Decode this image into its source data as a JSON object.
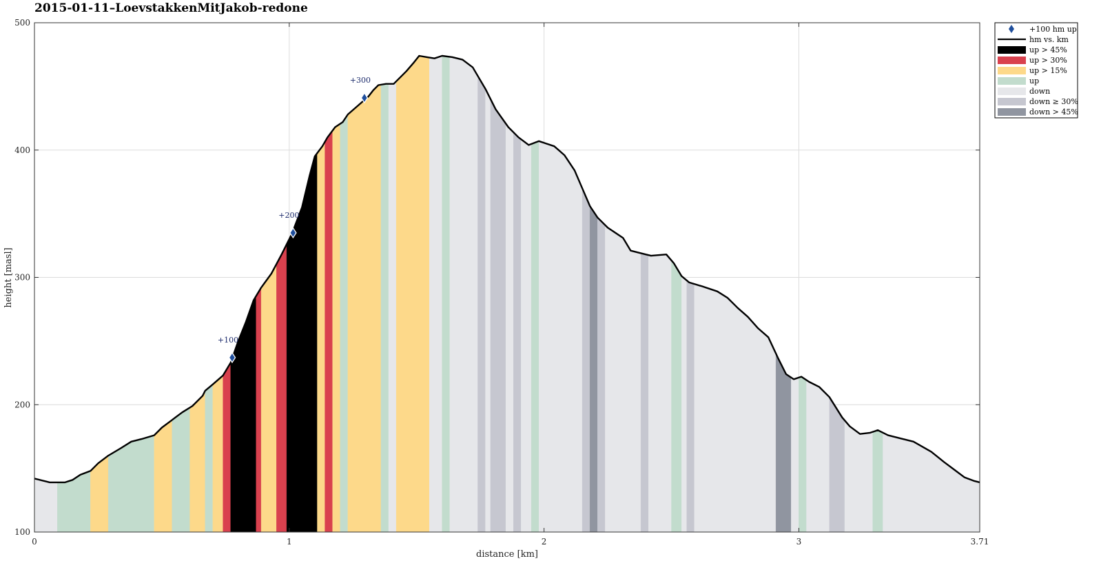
{
  "chart_data": {
    "type": "area",
    "title": "2015-01-11–LoevstakkenMitJakob-redone",
    "xlabel": "distance [km]",
    "ylabel": "height [masl]",
    "xlim": [
      0,
      3.71
    ],
    "ylim": [
      100,
      500
    ],
    "xticks": [
      "0",
      "1",
      "2",
      "3",
      "3.71"
    ],
    "yticks": [
      "100",
      "200",
      "300",
      "400",
      "500"
    ],
    "grid": true,
    "legend_position": "outside-top-right",
    "legend": [
      {
        "label": "+100 hm up",
        "kind": "marker",
        "color": "#1f4e9c"
      },
      {
        "label": "hm vs. km",
        "kind": "line",
        "color": "#000000"
      },
      {
        "label": "up > 45%",
        "kind": "patch",
        "color": "#000000"
      },
      {
        "label": "up > 30%",
        "kind": "patch",
        "color": "#d9414e"
      },
      {
        "label": "up > 15%",
        "kind": "patch",
        "color": "#fdd98a"
      },
      {
        "label": "up",
        "kind": "patch",
        "color": "#c2dccd"
      },
      {
        "label": "down",
        "kind": "patch",
        "color": "#e6e7ea"
      },
      {
        "label": "down ≥ 30%",
        "kind": "patch",
        "color": "#c6c7d0"
      },
      {
        "label": "down > 45%",
        "kind": "patch",
        "color": "#9095a0"
      }
    ],
    "profile": [
      [
        0,
        142
      ],
      [
        0.06,
        139
      ],
      [
        0.12,
        139
      ],
      [
        0.15,
        141
      ],
      [
        0.18,
        145
      ],
      [
        0.22,
        148
      ],
      [
        0.25,
        154
      ],
      [
        0.29,
        160
      ],
      [
        0.34,
        166
      ],
      [
        0.38,
        171
      ],
      [
        0.42,
        173
      ],
      [
        0.47,
        176
      ],
      [
        0.5,
        182
      ],
      [
        0.54,
        188
      ],
      [
        0.58,
        194
      ],
      [
        0.62,
        199
      ],
      [
        0.66,
        207
      ],
      [
        0.67,
        211
      ],
      [
        0.7,
        216
      ],
      [
        0.74,
        223
      ],
      [
        0.77,
        233
      ],
      [
        0.8,
        250
      ],
      [
        0.83,
        265
      ],
      [
        0.86,
        282
      ],
      [
        0.89,
        292
      ],
      [
        0.93,
        303
      ],
      [
        0.97,
        318
      ],
      [
        1.01,
        334
      ],
      [
        1.05,
        355
      ],
      [
        1.08,
        380
      ],
      [
        1.1,
        395
      ],
      [
        1.13,
        403
      ],
      [
        1.15,
        410
      ],
      [
        1.18,
        418
      ],
      [
        1.21,
        422
      ],
      [
        1.23,
        428
      ],
      [
        1.27,
        435
      ],
      [
        1.31,
        442
      ],
      [
        1.33,
        447
      ],
      [
        1.35,
        451
      ],
      [
        1.38,
        452
      ],
      [
        1.41,
        452
      ],
      [
        1.43,
        456
      ],
      [
        1.46,
        462
      ],
      [
        1.49,
        469
      ],
      [
        1.51,
        474
      ],
      [
        1.54,
        473
      ],
      [
        1.57,
        472
      ],
      [
        1.6,
        474
      ],
      [
        1.64,
        473
      ],
      [
        1.68,
        471
      ],
      [
        1.72,
        465
      ],
      [
        1.77,
        448
      ],
      [
        1.81,
        432
      ],
      [
        1.86,
        418
      ],
      [
        1.9,
        410
      ],
      [
        1.94,
        404
      ],
      [
        1.98,
        407
      ],
      [
        2.01,
        405
      ],
      [
        2.04,
        403
      ],
      [
        2.08,
        396
      ],
      [
        2.12,
        384
      ],
      [
        2.15,
        370
      ],
      [
        2.18,
        356
      ],
      [
        2.21,
        347
      ],
      [
        2.25,
        339
      ],
      [
        2.31,
        331
      ],
      [
        2.34,
        321
      ],
      [
        2.38,
        319
      ],
      [
        2.42,
        317
      ],
      [
        2.48,
        318
      ],
      [
        2.51,
        311
      ],
      [
        2.54,
        301
      ],
      [
        2.57,
        296
      ],
      [
        2.62,
        293
      ],
      [
        2.68,
        289
      ],
      [
        2.72,
        284
      ],
      [
        2.76,
        276
      ],
      [
        2.8,
        269
      ],
      [
        2.84,
        260
      ],
      [
        2.88,
        253
      ],
      [
        2.92,
        236
      ],
      [
        2.95,
        224
      ],
      [
        2.98,
        220
      ],
      [
        3.01,
        222
      ],
      [
        3.04,
        218
      ],
      [
        3.08,
        214
      ],
      [
        3.12,
        206
      ],
      [
        3.17,
        190
      ],
      [
        3.2,
        183
      ],
      [
        3.24,
        177
      ],
      [
        3.28,
        178
      ],
      [
        3.31,
        180
      ],
      [
        3.35,
        176
      ],
      [
        3.39,
        174
      ],
      [
        3.45,
        171
      ],
      [
        3.52,
        163
      ],
      [
        3.57,
        155
      ],
      [
        3.61,
        149
      ],
      [
        3.65,
        143
      ],
      [
        3.69,
        140
      ],
      [
        3.71,
        139
      ],
      [
        3.74,
        141
      ],
      [
        3.78,
        140
      ],
      [
        3.82,
        141
      ]
    ],
    "segments": [
      [
        0,
        0.09,
        "down"
      ],
      [
        0.09,
        0.22,
        "up"
      ],
      [
        0.22,
        0.29,
        "up15"
      ],
      [
        0.29,
        0.47,
        "up"
      ],
      [
        0.47,
        0.54,
        "up15"
      ],
      [
        0.54,
        0.61,
        "up"
      ],
      [
        0.61,
        0.67,
        "up15"
      ],
      [
        0.67,
        0.7,
        "up"
      ],
      [
        0.7,
        0.74,
        "up15"
      ],
      [
        0.74,
        0.77,
        "up30"
      ],
      [
        0.77,
        0.87,
        "up45"
      ],
      [
        0.87,
        0.89,
        "up30"
      ],
      [
        0.89,
        0.95,
        "up15"
      ],
      [
        0.95,
        0.99,
        "up30"
      ],
      [
        0.99,
        1.11,
        "up45"
      ],
      [
        1.11,
        1.14,
        "up15"
      ],
      [
        1.14,
        1.17,
        "up30"
      ],
      [
        1.17,
        1.2,
        "up15"
      ],
      [
        1.2,
        1.23,
        "up"
      ],
      [
        1.23,
        1.36,
        "up15"
      ],
      [
        1.36,
        1.39,
        "up"
      ],
      [
        1.39,
        1.42,
        "down"
      ],
      [
        1.42,
        1.55,
        "up15"
      ],
      [
        1.55,
        1.6,
        "down"
      ],
      [
        1.6,
        1.63,
        "up"
      ],
      [
        1.63,
        1.74,
        "down"
      ],
      [
        1.74,
        1.77,
        "down30"
      ],
      [
        1.77,
        1.79,
        "down"
      ],
      [
        1.79,
        1.85,
        "down30"
      ],
      [
        1.85,
        1.88,
        "down"
      ],
      [
        1.88,
        1.91,
        "down30"
      ],
      [
        1.91,
        1.95,
        "down"
      ],
      [
        1.95,
        1.98,
        "up"
      ],
      [
        1.98,
        2.15,
        "down"
      ],
      [
        2.15,
        2.18,
        "down30"
      ],
      [
        2.18,
        2.21,
        "down45"
      ],
      [
        2.21,
        2.24,
        "down30"
      ],
      [
        2.24,
        2.38,
        "down"
      ],
      [
        2.38,
        2.41,
        "down30"
      ],
      [
        2.41,
        2.5,
        "down"
      ],
      [
        2.5,
        2.54,
        "up"
      ],
      [
        2.54,
        2.56,
        "down"
      ],
      [
        2.56,
        2.59,
        "down30"
      ],
      [
        2.59,
        2.91,
        "down"
      ],
      [
        2.91,
        2.97,
        "down45"
      ],
      [
        2.97,
        3.0,
        "down"
      ],
      [
        3.0,
        3.03,
        "up"
      ],
      [
        3.03,
        3.12,
        "down"
      ],
      [
        3.12,
        3.18,
        "down30"
      ],
      [
        3.18,
        3.29,
        "down"
      ],
      [
        3.29,
        3.33,
        "up"
      ],
      [
        3.33,
        3.75,
        "down"
      ],
      [
        3.75,
        3.78,
        "up"
      ],
      [
        3.78,
        3.82,
        "down"
      ]
    ],
    "markers": [
      {
        "x": 0.776,
        "y": 237,
        "label": "+100"
      },
      {
        "x": 1.015,
        "y": 335,
        "label": "+200"
      },
      {
        "x": 1.295,
        "y": 441,
        "label": "+300"
      }
    ]
  },
  "colors": {
    "up45": "#000000",
    "up30": "#d9414e",
    "up15": "#fdd98a",
    "up": "#c2dccd",
    "down": "#e6e7ea",
    "down30": "#c6c7d0",
    "down45": "#9095a0",
    "line": "#000000",
    "marker": "#1f4e9c",
    "grid": "#dcdcdc",
    "axis": "#333333"
  }
}
